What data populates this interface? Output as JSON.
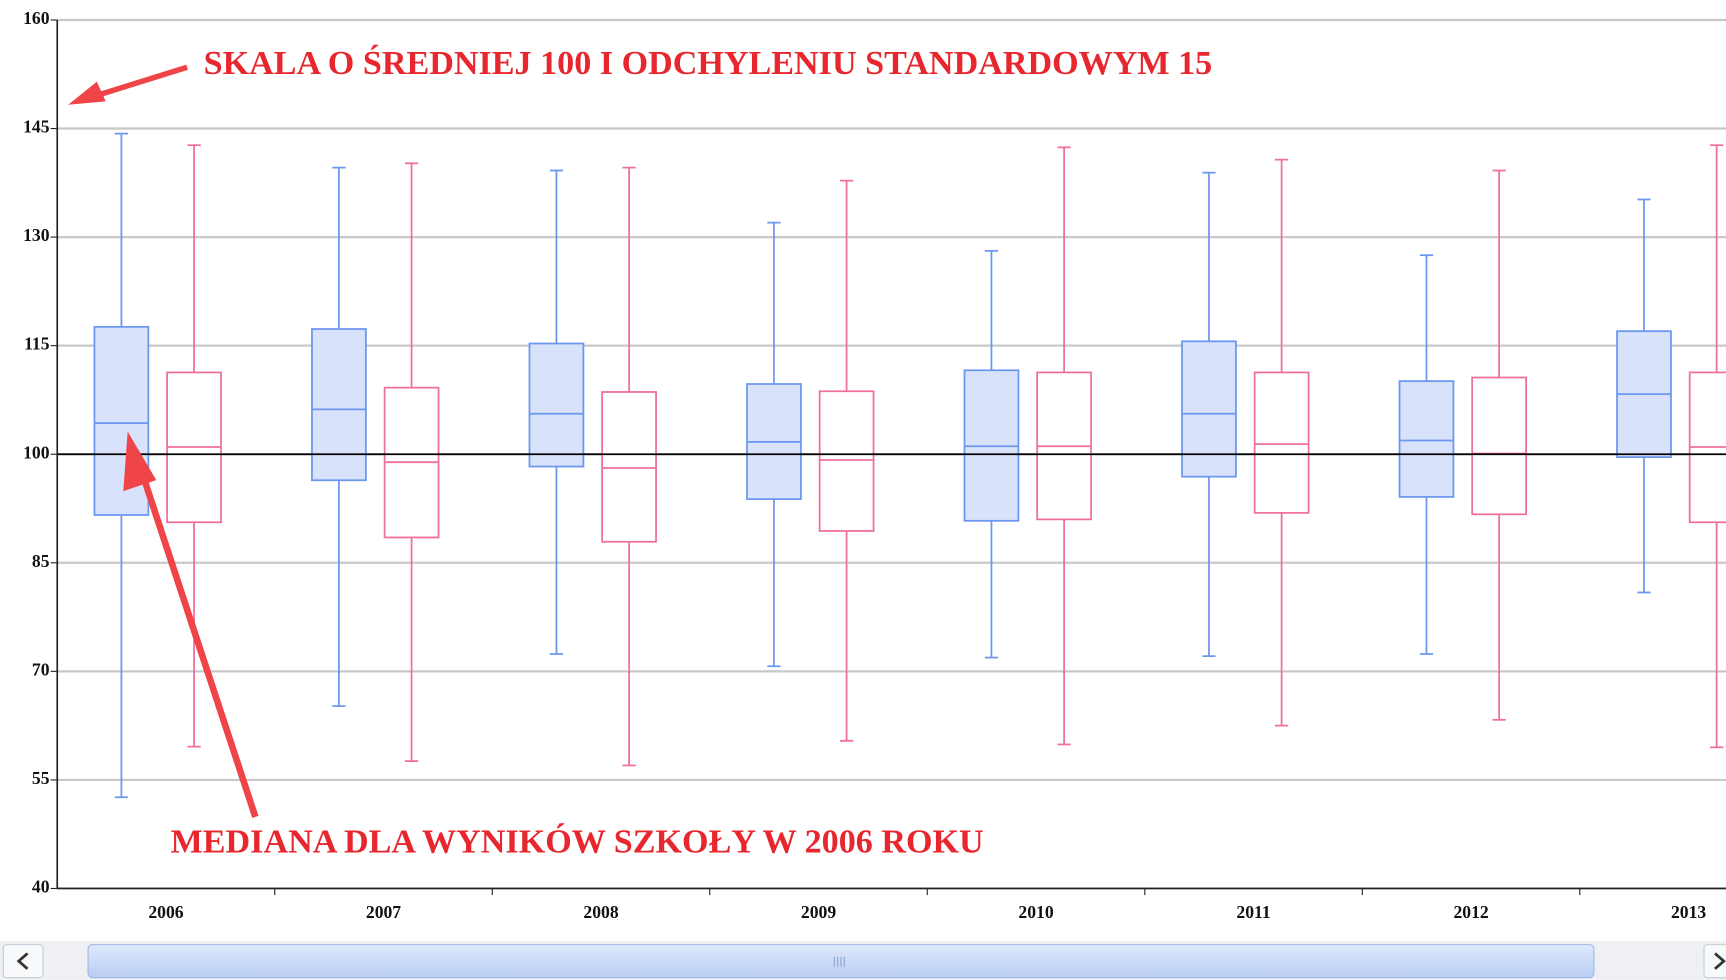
{
  "chart_data": {
    "type": "box",
    "categories": [
      "2006",
      "2007",
      "2008",
      "2009",
      "2010",
      "2011",
      "2012",
      "2013"
    ],
    "series": [
      {
        "color": "#6c97f0",
        "fill": "#d8e2fa",
        "low": [
          52.6,
          65.2,
          72.4,
          70.7,
          71.9,
          72.1,
          72.4,
          80.9
        ],
        "q1": [
          91.6,
          96.4,
          98.3,
          93.8,
          90.8,
          96.9,
          94.1,
          99.6
        ],
        "median": [
          104.3,
          106.2,
          105.6,
          101.7,
          101.1,
          105.6,
          101.9,
          108.3
        ],
        "q3": [
          117.6,
          117.3,
          115.3,
          109.7,
          111.6,
          115.6,
          110.1,
          117.0
        ],
        "high": [
          144.3,
          139.6,
          139.2,
          132.0,
          128.1,
          138.9,
          127.5,
          135.2
        ]
      },
      {
        "color": "#f0709a",
        "fill": "#ffffff",
        "low": [
          59.6,
          57.6,
          57.0,
          60.4,
          59.9,
          62.5,
          63.3,
          59.5
        ],
        "q1": [
          90.6,
          88.5,
          87.9,
          89.4,
          91.0,
          91.9,
          91.7,
          90.6
        ],
        "median": [
          101.0,
          98.9,
          98.1,
          99.2,
          101.1,
          101.4,
          100.1,
          101.0
        ],
        "q3": [
          111.3,
          109.2,
          108.6,
          108.7,
          111.3,
          111.3,
          110.6,
          111.3
        ],
        "high": [
          142.7,
          140.2,
          139.6,
          137.8,
          142.4,
          140.7,
          139.2,
          142.7
        ]
      }
    ],
    "ylim": [
      40,
      160
    ],
    "yticks": [
      40,
      55,
      70,
      85,
      100,
      115,
      130,
      145,
      160
    ],
    "grid": true,
    "reference_line": 100,
    "annotations": [
      "SKALA O ŚREDNIEJ 100 I ODCHYLENIU STANDARDOWYM 15",
      "MEDIANA DLA WYNIKÓW SZKOŁY W 2006 ROKU"
    ]
  }
}
